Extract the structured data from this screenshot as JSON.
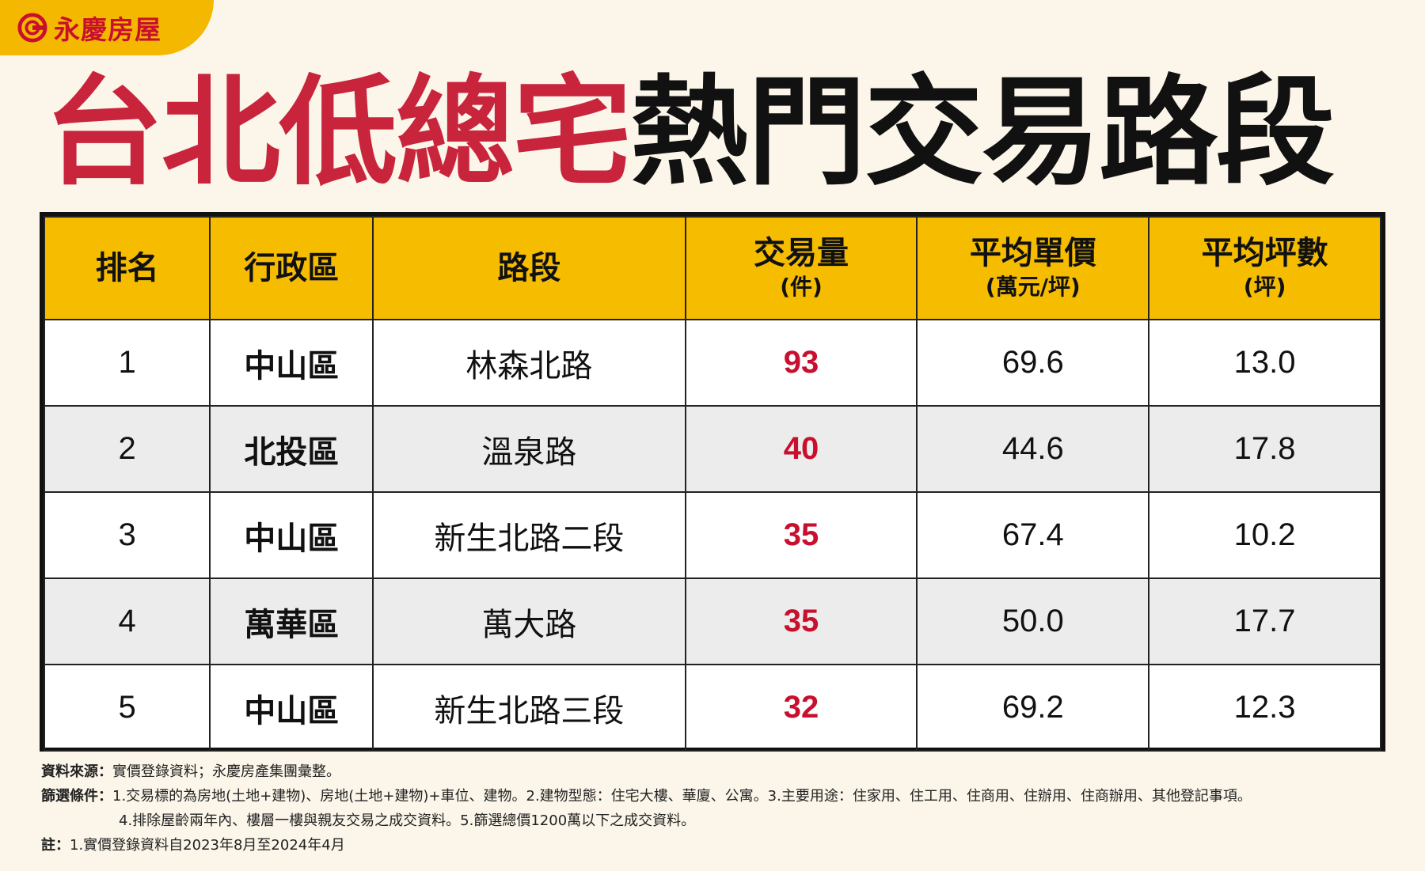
{
  "brand": {
    "name": "永慶房屋",
    "logo_icon": "yungching-logo-icon",
    "accent": "#c8102e",
    "tab_color": "#f5b800"
  },
  "title": {
    "red_part": "台北低總宅",
    "black_part": "熱門交易路段"
  },
  "table": {
    "headers": [
      {
        "main": "排名",
        "sub": ""
      },
      {
        "main": "行政區",
        "sub": ""
      },
      {
        "main": "路段",
        "sub": ""
      },
      {
        "main": "交易量",
        "sub": "(件)"
      },
      {
        "main": "平均單價",
        "sub": "(萬元/坪)"
      },
      {
        "main": "平均坪數",
        "sub": "(坪)"
      }
    ],
    "rows": [
      {
        "rank": "1",
        "district": "中山區",
        "road": "林森北路",
        "volume": "93",
        "unit_price": "69.6",
        "area": "13.0"
      },
      {
        "rank": "2",
        "district": "北投區",
        "road": "溫泉路",
        "volume": "40",
        "unit_price": "44.6",
        "area": "17.8"
      },
      {
        "rank": "3",
        "district": "中山區",
        "road": "新生北路二段",
        "volume": "35",
        "unit_price": "67.4",
        "area": "10.2"
      },
      {
        "rank": "4",
        "district": "萬華區",
        "road": "萬大路",
        "volume": "35",
        "unit_price": "50.0",
        "area": "17.7"
      },
      {
        "rank": "5",
        "district": "中山區",
        "road": "新生北路三段",
        "volume": "32",
        "unit_price": "69.2",
        "area": "12.3"
      }
    ]
  },
  "notes": {
    "source_label": "資料來源：",
    "source_text": "實價登錄資料；永慶房產集團彙整。",
    "filter_label": "篩選條件：",
    "filter_line1": "1.交易標的為房地(土地+建物)、房地(土地+建物)+車位、建物。2.建物型態：住宅大樓、華廈、公寓。3.主要用途：住家用、住工用、住商用、住辦用、住商辦用、其他登記事項。",
    "filter_line2": "4.排除屋齡兩年內、樓層一樓與親友交易之成交資料。5.篩選總價1200萬以下之成交資料。",
    "remark_label": "註：",
    "remark_text": "1.實價登錄資料自2023年8月至2024年4月"
  }
}
